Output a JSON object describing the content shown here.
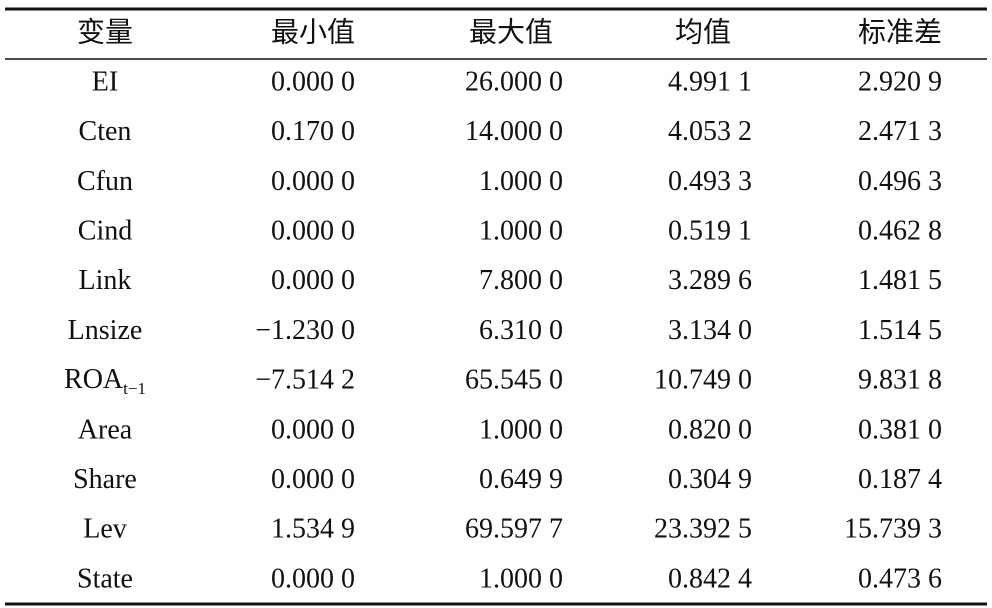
{
  "table": {
    "header": [
      "变量",
      "最小值",
      "最大值",
      "均值",
      "标准差"
    ],
    "rows": [
      [
        "EI",
        "0.000 0",
        "26.000 0",
        "4.991 1",
        "2.920 9"
      ],
      [
        "Cten",
        "0.170 0",
        "14.000 0",
        "4.053 2",
        "2.471 3"
      ],
      [
        "Cfun",
        "0.000 0",
        "1.000 0",
        "0.493 3",
        "0.496 3"
      ],
      [
        "Cind",
        "0.000 0",
        "1.000 0",
        "0.519 1",
        "0.462 8"
      ],
      [
        "Link",
        "0.000 0",
        "7.800 0",
        "3.289 6",
        "1.481 5"
      ],
      [
        "Lnsize",
        "−1.230 0",
        "6.310 0",
        "3.134 0",
        "1.514 5"
      ],
      [
        {
          "text": "ROA",
          "sub": "t−1"
        },
        "−7.514 2",
        "65.545 0",
        "10.749 0",
        "9.831 8"
      ],
      [
        "Area",
        "0.000 0",
        "1.000 0",
        "0.820 0",
        "0.381 0"
      ],
      [
        "Share",
        "0.000 0",
        "0.649 9",
        "0.304 9",
        "0.187 4"
      ],
      [
        "Lev",
        "1.534 9",
        "69.597 7",
        "23.392 5",
        "15.739 3"
      ],
      [
        "State",
        "0.000 0",
        "1.000 0",
        "0.842 4",
        "0.473 6"
      ]
    ]
  }
}
